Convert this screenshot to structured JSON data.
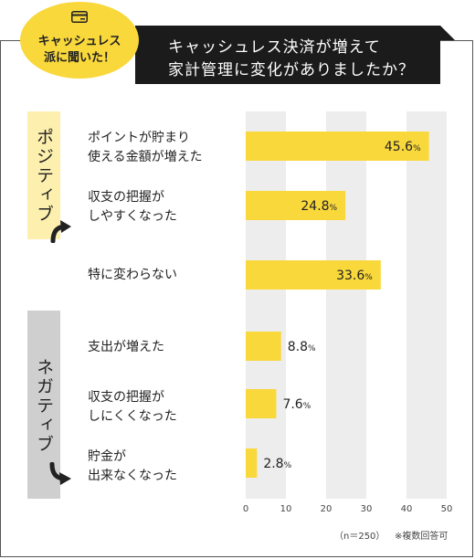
{
  "badge": {
    "line1": "キャッシュレス",
    "line2": "派に聞いた！",
    "icon": "card-icon"
  },
  "banner": {
    "line1": "キャッシュレス決済が増えて",
    "line2": "家計管理に変化がありましたか？"
  },
  "groups": {
    "positive": "ポジティブ",
    "negative": "ネガティブ"
  },
  "colors": {
    "bar": "#f9d83c",
    "band": "#ededed",
    "banner": "#1b1b1b"
  },
  "footnote": {
    "n": "（n＝250）",
    "note": "※複数回答可"
  },
  "chart_data": {
    "type": "bar",
    "orientation": "horizontal",
    "categories": [
      "ポイントが貯まり\n使える金額が増えた",
      "収支の把握が\nしやすくなった",
      "特に変わらない",
      "支出が増えた",
      "収支の把握が\nしにくくなった",
      "貯金が\n出来なくなった"
    ],
    "values": [
      45.6,
      24.8,
      33.6,
      8.8,
      7.6,
      2.8
    ],
    "value_labels": [
      "45.6",
      "24.8",
      "33.6",
      "8.8",
      "7.6",
      "2.8"
    ],
    "unit": "%",
    "xlim": [
      0,
      50
    ],
    "xticks": [
      "0",
      "10",
      "20",
      "30",
      "40",
      "50"
    ],
    "grid": "alternating vertical bands"
  }
}
